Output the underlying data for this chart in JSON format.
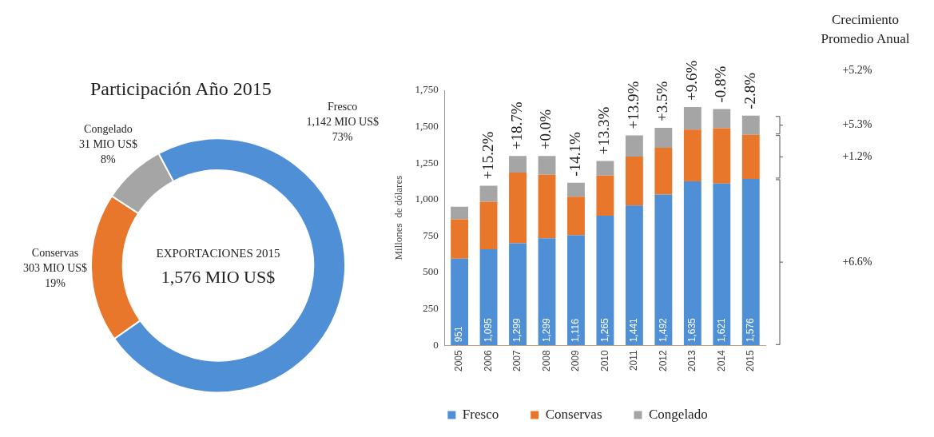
{
  "chart_data": [
    {
      "type": "donut",
      "title": "Participación Año 2015",
      "categories": [
        "Fresco",
        "Conservas",
        "Congelado"
      ],
      "values": [
        73,
        19,
        8
      ],
      "colors": [
        "#4e8fd6",
        "#e8762b",
        "#a5a5a5"
      ],
      "value_labels": [
        "1,142 MIO US$\n73%",
        "303 MIO US$\n19%",
        "31 MIO US$\n8%"
      ],
      "annotations": [
        "EXPORTACIONES 2015",
        "1,576 MIO US$"
      ],
      "legend": false
    },
    {
      "type": "bar",
      "stacked": true,
      "ylabel": "Millones  de dólares",
      "categories": [
        "2005",
        "2006",
        "2007",
        "2008",
        "2009",
        "2010",
        "2011",
        "2012",
        "2013",
        "2014",
        "2015"
      ],
      "series": [
        {
          "name": "Fresco",
          "color": "#4e8fd6",
          "values": [
            595,
            660,
            700,
            735,
            755,
            890,
            960,
            1035,
            1125,
            1110,
            1142
          ]
        },
        {
          "name": "Conservas",
          "color": "#e8762b",
          "values": [
            270,
            325,
            485,
            435,
            265,
            275,
            335,
            320,
            355,
            380,
            303
          ]
        },
        {
          "name": "Congelado",
          "color": "#a5a5a5",
          "values": [
            86,
            110,
            114,
            129,
            96,
            100,
            146,
            137,
            155,
            131,
            131
          ]
        }
      ],
      "totals": [
        "951",
        "1,095",
        "1,299",
        "1,299",
        "1,116",
        "1,265",
        "1,441",
        "1,492",
        "1,635",
        "1,621",
        "1,576"
      ],
      "ylim": [
        0,
        1750
      ],
      "yticks": [
        {
          "value": 0,
          "label": "0"
        },
        {
          "value": 250,
          "label": "250"
        },
        {
          "value": 500,
          "label": "500"
        },
        {
          "value": 750,
          "label": "750"
        },
        {
          "value": 1000,
          "label": "1,000"
        },
        {
          "value": 1250,
          "label": "1,250"
        },
        {
          "value": 1500,
          "label": "1,500"
        },
        {
          "value": 1750,
          "label": "1,750"
        }
      ],
      "grid": false,
      "legend": "bottom",
      "annotations": [
        {
          "text": "+15.2%",
          "x": "2006",
          "y": 1095
        },
        {
          "text": "+18.7%",
          "x": "2007",
          "y": 1299
        },
        {
          "text": "+0.0%",
          "x": "2008",
          "y": 1299
        },
        {
          "text": "-14.1%",
          "x": "2009",
          "y": 1116
        },
        {
          "text": "+13.3%",
          "x": "2010",
          "y": 1265
        },
        {
          "text": "+13.9%",
          "x": "2011",
          "y": 1441
        },
        {
          "text": "+3.5%",
          "x": "2012",
          "y": 1492
        },
        {
          "text": "+9.6%",
          "x": "2013",
          "y": 1635
        },
        {
          "text": "-0.8%",
          "x": "2014",
          "y": 1621
        },
        {
          "text": "-2.8%",
          "x": "2015",
          "y": 1576
        },
        "Crecimiento Promedio Anual",
        "+5.2%",
        "+5.3%",
        "+1.2%",
        "+6.6%"
      ]
    }
  ]
}
